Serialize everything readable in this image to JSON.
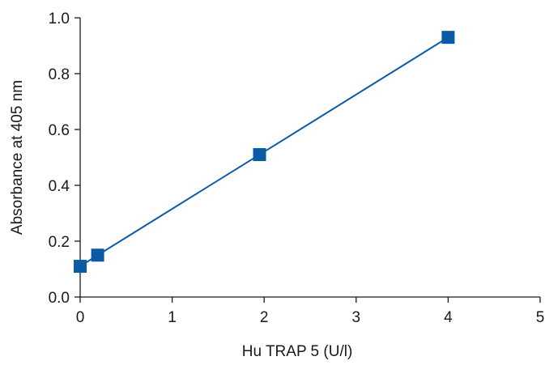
{
  "chart_data": {
    "type": "line",
    "title": "",
    "xlabel": "Hu TRAP 5 (U/l)",
    "ylabel": "Absorbance at 405 nm",
    "xlim": [
      0,
      5
    ],
    "ylim": [
      0.0,
      1.0
    ],
    "x_ticks": [
      "0",
      "1",
      "2",
      "3",
      "4",
      "5"
    ],
    "y_ticks": [
      "0.0",
      "0.2",
      "0.4",
      "0.6",
      "0.8",
      "1.0"
    ],
    "grid": false,
    "legend": "none",
    "series": [
      {
        "color": "#0b5aa6",
        "marker": "square",
        "points": [
          {
            "x": 0.0,
            "y": 0.11
          },
          {
            "x": 0.19,
            "y": 0.15
          },
          {
            "x": 1.95,
            "y": 0.51
          },
          {
            "x": 4.0,
            "y": 0.93
          }
        ]
      }
    ]
  }
}
